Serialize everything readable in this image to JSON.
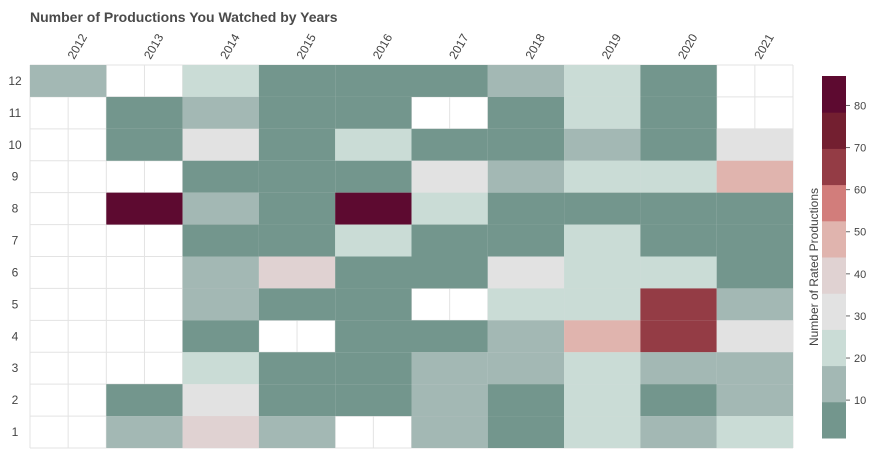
{
  "chart_data": {
    "type": "heatmap",
    "title": "Number of Productions You Watched by Years",
    "xlabel": "",
    "ylabel": "",
    "categories": [
      "2012",
      "2013",
      "2014",
      "2015",
      "2016",
      "2017",
      "2018",
      "2019",
      "2020",
      "2021"
    ],
    "rows": [
      "12",
      "11",
      "10",
      "9",
      "8",
      "7",
      "6",
      "5",
      "4",
      "3",
      "2",
      "1"
    ],
    "values": [
      [
        12,
        null,
        22,
        5,
        5,
        5,
        15,
        22,
        5,
        null
      ],
      [
        null,
        5,
        15,
        5,
        5,
        null,
        5,
        22,
        5,
        null
      ],
      [
        null,
        5,
        32,
        5,
        22,
        5,
        5,
        15,
        5,
        32
      ],
      [
        null,
        null,
        5,
        5,
        5,
        32,
        15,
        22,
        22,
        48
      ],
      [
        null,
        88,
        15,
        5,
        88,
        22,
        5,
        5,
        5,
        5
      ],
      [
        null,
        null,
        5,
        5,
        22,
        5,
        5,
        22,
        5,
        5
      ],
      [
        null,
        null,
        15,
        42,
        5,
        5,
        32,
        22,
        22,
        5
      ],
      [
        null,
        null,
        15,
        5,
        5,
        null,
        22,
        22,
        68,
        15
      ],
      [
        null,
        null,
        5,
        null,
        5,
        5,
        15,
        48,
        68,
        32
      ],
      [
        null,
        null,
        22,
        5,
        5,
        15,
        15,
        22,
        15,
        15
      ],
      [
        null,
        5,
        32,
        5,
        5,
        15,
        5,
        22,
        5,
        15
      ],
      [
        null,
        15,
        42,
        15,
        null,
        15,
        5,
        22,
        15,
        22
      ]
    ],
    "colorbar": {
      "label": "Number of Rated Productions",
      "ticks": [
        "10",
        "20",
        "30",
        "40",
        "50",
        "60",
        "70",
        "80"
      ],
      "tick_values": [
        10,
        20,
        30,
        40,
        50,
        60,
        70,
        80
      ],
      "range": [
        1,
        87
      ],
      "colors": [
        "#73968d",
        "#a3b8b4",
        "#cadcd6",
        "#e2e2e2",
        "#e0d2d2",
        "#e0b4ae",
        "#d27d7b",
        "#943c45",
        "#731f30",
        "#5d0a30"
      ]
    },
    "grid": true,
    "legend": "right"
  }
}
